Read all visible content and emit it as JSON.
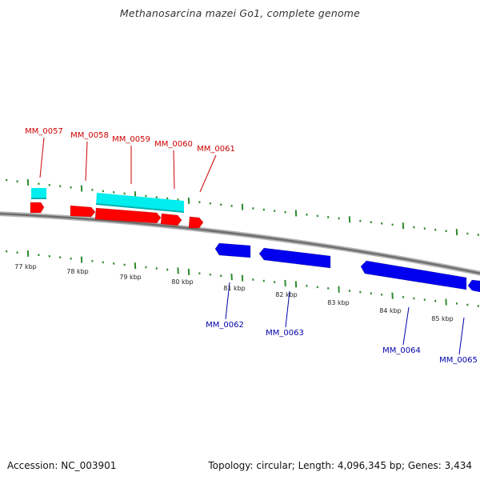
{
  "title": "Methanosarcina mazei Go1, complete genome",
  "footer": {
    "accession": "Accession: NC_003901",
    "summary": "Topology: circular; Length: 4,096,345 bp; Genes: 3,434"
  },
  "colors": {
    "forward_gene": "#ff0000",
    "reverse_gene": "#0000ee",
    "cds_feature": "#00eeee",
    "tick": "#2e8b2e",
    "backbone": "#8c8c8c",
    "forward_label": "#cc0000",
    "reverse_label": "#0000aa"
  },
  "scale_labels": [
    "77 kbp",
    "78 kbp",
    "79 kbp",
    "80 kbp",
    "81 kbp",
    "82 kbp",
    "83 kbp",
    "84 kbp",
    "85 kbp"
  ],
  "forward_genes": [
    {
      "label": "MM_0057"
    },
    {
      "label": "MM_0058"
    },
    {
      "label": "MM_0059"
    },
    {
      "label": "MM_0060"
    },
    {
      "label": "MM_0061"
    }
  ],
  "reverse_genes": [
    {
      "label": "MM_0062"
    },
    {
      "label": "MM_0063"
    },
    {
      "label": "MM_0064"
    },
    {
      "label": "MM_0065"
    }
  ]
}
